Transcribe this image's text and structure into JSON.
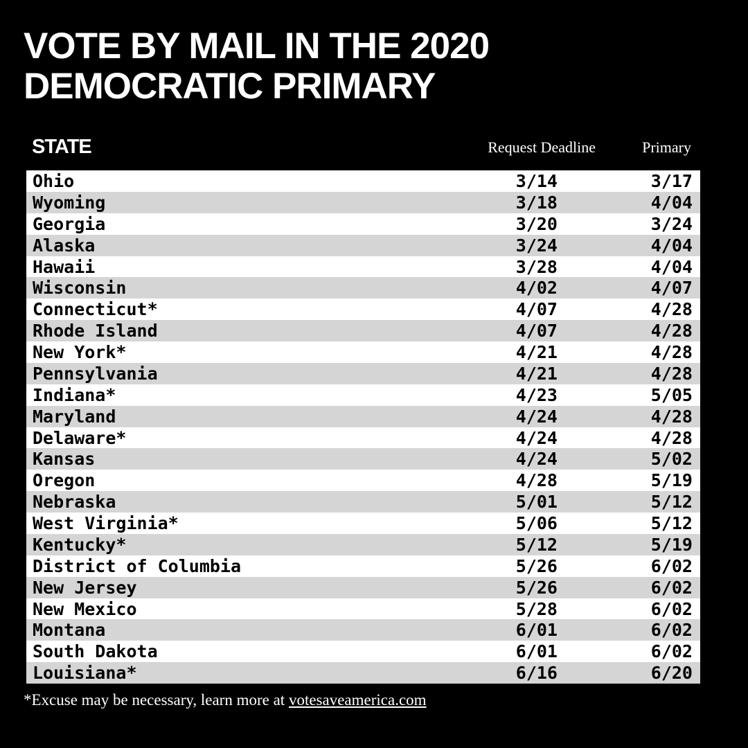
{
  "title": "VOTE BY MAIL IN THE 2020 DEMOCRATIC PRIMARY",
  "chart_data": {
    "type": "table",
    "columns": [
      "STATE",
      "Request Deadline",
      "Primary"
    ],
    "rows": [
      [
        "Ohio",
        "3/14",
        "3/17"
      ],
      [
        "Wyoming",
        "3/18",
        "4/04"
      ],
      [
        "Georgia",
        "3/20",
        "3/24"
      ],
      [
        "Alaska",
        "3/24",
        "4/04"
      ],
      [
        "Hawaii",
        "3/28",
        "4/04"
      ],
      [
        "Wisconsin",
        "4/02",
        "4/07"
      ],
      [
        "Connecticut*",
        "4/07",
        "4/28"
      ],
      [
        "Rhode Island",
        "4/07",
        "4/28"
      ],
      [
        "New York*",
        "4/21",
        "4/28"
      ],
      [
        "Pennsylvania",
        "4/21",
        "4/28"
      ],
      [
        "Indiana*",
        "4/23",
        "5/05"
      ],
      [
        "Maryland",
        "4/24",
        "4/28"
      ],
      [
        "Delaware*",
        "4/24",
        "4/28"
      ],
      [
        "Kansas",
        "4/24",
        "5/02"
      ],
      [
        "Oregon",
        "4/28",
        "5/19"
      ],
      [
        "Nebraska",
        "5/01",
        "5/12"
      ],
      [
        "West Virginia*",
        "5/06",
        "5/12"
      ],
      [
        "Kentucky*",
        "5/12",
        "5/19"
      ],
      [
        "District of Columbia",
        "5/26",
        "6/02"
      ],
      [
        "New Jersey",
        "5/26",
        "6/02"
      ],
      [
        "New Mexico",
        "5/28",
        "6/02"
      ],
      [
        "Montana",
        "6/01",
        "6/02"
      ],
      [
        "South Dakota",
        "6/01",
        "6/02"
      ],
      [
        "Louisiana*",
        "6/16",
        "6/20"
      ]
    ]
  },
  "footnote": {
    "text": "*Excuse may be necessary,  learn more at ",
    "link": "votesaveamerica.com"
  },
  "colors": {
    "background": "#000000",
    "row_light": "#ffffff",
    "row_alt": "#d5d5d5",
    "text_dark": "#000000",
    "text_light": "#ffffff"
  }
}
